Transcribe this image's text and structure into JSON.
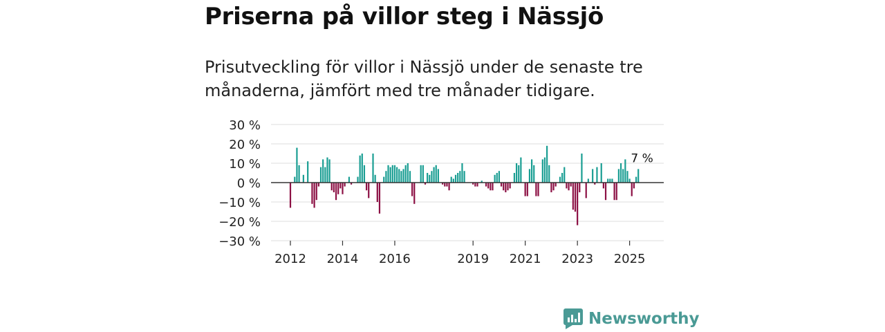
{
  "title": "Priserna på villor steg i Nässjö",
  "subtitle": "Prisutveckling för villor i Nässjö under de senaste tre månaderna, jämfört med tre månader tidigare.",
  "brand": {
    "name": "Newsworthy"
  },
  "chart_data": {
    "type": "bar",
    "title": "Priserna på villor steg i Nässjö",
    "ylabel": "",
    "xlabel": "",
    "ylim": [
      -30,
      30
    ],
    "yticks": [
      30,
      20,
      10,
      0,
      -10,
      -20,
      -30
    ],
    "ytick_labels": [
      "30 %",
      "20 %",
      "10 %",
      "0 %",
      "−10 %",
      "−20 %",
      "−30 %"
    ],
    "x_start": "2012-01",
    "x_step": "month",
    "xtick_labels": [
      {
        "label": "2012",
        "index": 0
      },
      {
        "label": "2014",
        "index": 24
      },
      {
        "label": "2016",
        "index": 48
      },
      {
        "label": "2019",
        "index": 84
      },
      {
        "label": "2021",
        "index": 108
      },
      {
        "label": "2023",
        "index": 132
      },
      {
        "label": "2025",
        "index": 156
      }
    ],
    "colors": {
      "positive": "#1a9e93",
      "negative": "#8c1044",
      "axis": "#333333",
      "grid": "#dddddd"
    },
    "annotation": {
      "label": "7 %",
      "index": 161,
      "value": 7
    },
    "values": [
      -13,
      0,
      3,
      18,
      9,
      0,
      4,
      0,
      11,
      0,
      -11,
      -13,
      -9,
      -2,
      8,
      12,
      8,
      13,
      12,
      -4,
      -5,
      -9,
      -6,
      -3,
      -6,
      -2,
      0,
      3,
      -1,
      0,
      0,
      3,
      14,
      15,
      9,
      -4,
      -8,
      0,
      15,
      4,
      -10,
      -16,
      0,
      3,
      6,
      9,
      8,
      9,
      9,
      8,
      7,
      6,
      7,
      9,
      10,
      6,
      -7,
      -11,
      0,
      0,
      9,
      9,
      -1,
      5,
      4,
      6,
      8,
      9,
      7,
      0,
      -1,
      -2,
      -2,
      -4,
      3,
      2,
      4,
      5,
      6,
      10,
      6,
      0,
      0,
      0,
      -1,
      -2,
      -2,
      0,
      1,
      0,
      -2,
      -3,
      -4,
      -4,
      4,
      5,
      6,
      -2,
      -4,
      -5,
      -4,
      -3,
      0,
      5,
      10,
      9,
      13,
      0,
      -7,
      -7,
      7,
      12,
      9,
      -7,
      -7,
      0,
      12,
      13,
      19,
      9,
      -5,
      -4,
      -2,
      0,
      3,
      5,
      8,
      -3,
      -4,
      -2,
      -14,
      -15,
      -22,
      -5,
      15,
      0,
      -8,
      2,
      0,
      7,
      -1,
      8,
      0,
      10,
      -3,
      -9,
      2,
      2,
      2,
      -9,
      -9,
      7,
      10,
      7,
      12,
      6,
      2,
      -7,
      -3,
      3,
      7
    ]
  }
}
